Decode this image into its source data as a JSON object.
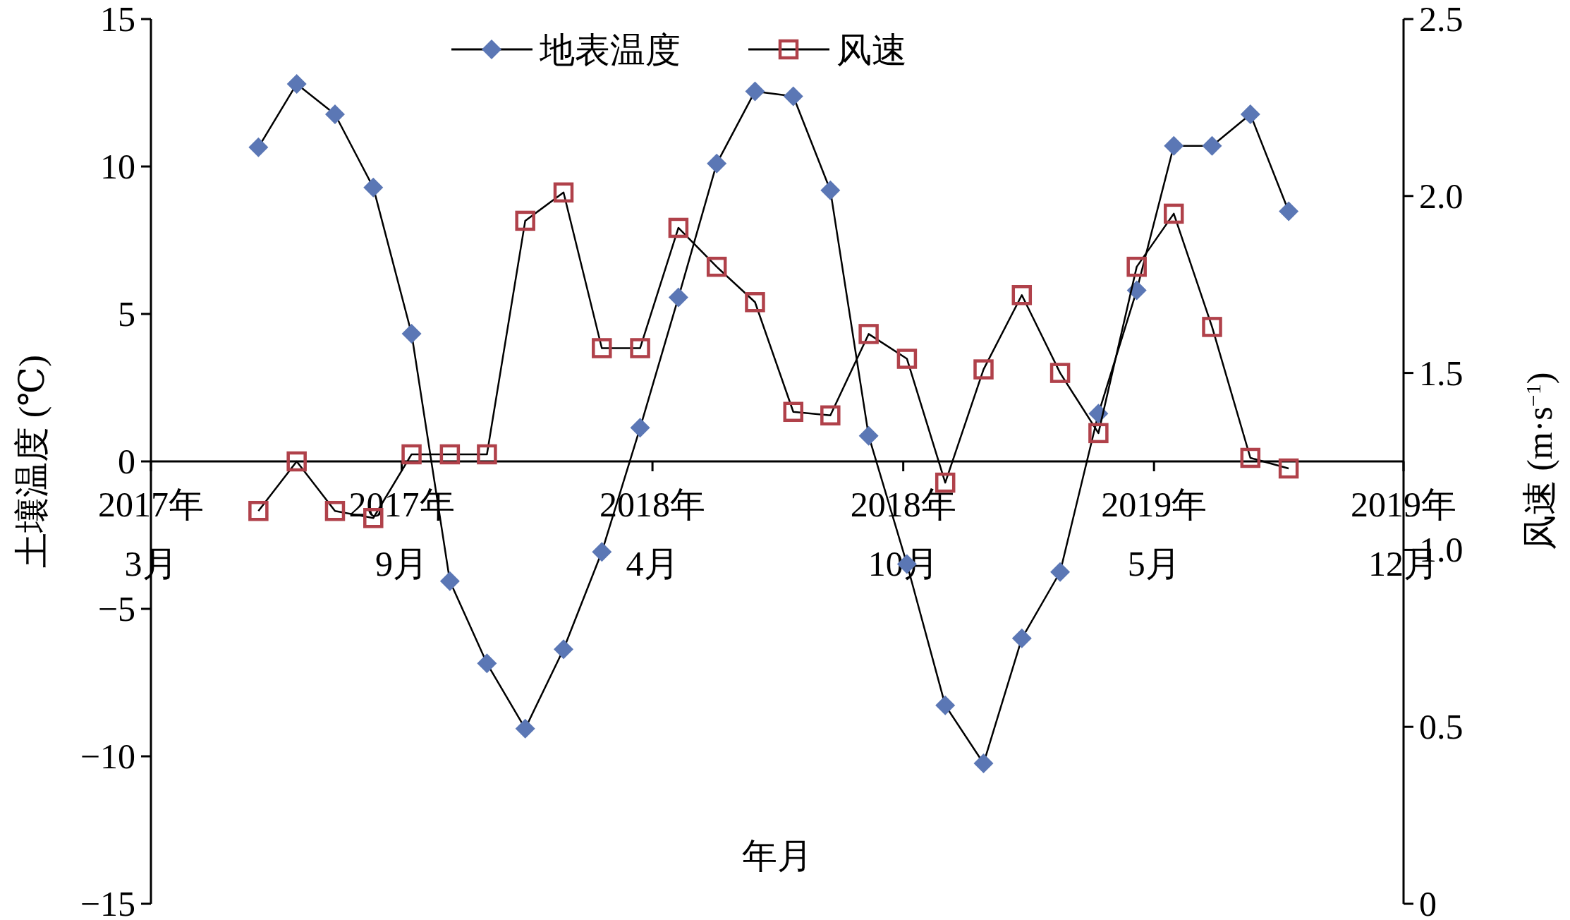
{
  "chart_data": {
    "type": "line",
    "xlabel": "年月",
    "ylabel": "土壤温度 (℃)",
    "y2label": "风速 (m·s$^{−1}$)",
    "legend": "top",
    "x": [
      "2017-05-27",
      "2017-06-27",
      "2017-07-28",
      "2017-08-28",
      "2017-09-28",
      "2017-10-29",
      "2017-11-28",
      "2017-12-29",
      "2018-01-29",
      "2018-03-01",
      "2018-04-01",
      "2018-05-02",
      "2018-06-02",
      "2018-07-03",
      "2018-08-03",
      "2018-09-02",
      "2018-10-03",
      "2018-11-03",
      "2018-12-04",
      "2019-01-04",
      "2019-02-04",
      "2019-03-07",
      "2019-04-07",
      "2019-05-08",
      "2019-06-07",
      "2019-07-08",
      "2019-08-08",
      "2019-09-08"
    ],
    "xlim": [
      "2017-03-01",
      "2019-12-10"
    ],
    "xticks": [
      {
        "value": "2017-03-01",
        "label": "2017年\n3月"
      },
      {
        "value": "2017-09-20",
        "label": "2017年\n9月"
      },
      {
        "value": "2018-04-11",
        "label": "2018年\n4月"
      },
      {
        "value": "2018-10-31",
        "label": "2018年\n10月"
      },
      {
        "value": "2019-05-22",
        "label": "2019年\n5月"
      },
      {
        "value": "2019-12-10",
        "label": "2019年\n12月"
      }
    ],
    "ylim": [
      -15,
      15
    ],
    "yticks": [
      {
        "value": -15,
        "label": "−15"
      },
      {
        "value": -10,
        "label": "−10"
      },
      {
        "value": -5,
        "label": "−5"
      },
      0,
      5,
      10,
      15
    ],
    "y2lim": [
      0,
      2.5
    ],
    "y2ticks": [
      0,
      0.5,
      {
        "value": 1,
        "label": "1.0"
      },
      1.5,
      {
        "value": 2,
        "label": "2.0"
      },
      2.5
    ],
    "series": [
      {
        "name": "地表温度",
        "color": "#5b77b5",
        "marker": "diamond",
        "values": [
          10.65,
          12.8,
          11.77,
          9.29,
          4.33,
          -4.06,
          -6.85,
          -9.06,
          -6.37,
          -3.07,
          1.14,
          5.56,
          10.1,
          12.55,
          12.38,
          9.19,
          0.87,
          -3.48,
          -8.27,
          -10.24,
          -6.0,
          -3.75,
          1.62,
          5.8,
          10.7,
          10.7,
          11.77,
          8.48
        ]
      },
      {
        "name": "风速",
        "color": "#b0414a",
        "marker": "square",
        "axis": "y2",
        "values": [
          1.11,
          1.25,
          1.11,
          1.09,
          1.27,
          1.27,
          1.27,
          1.93,
          2.01,
          1.57,
          1.57,
          1.91,
          1.8,
          1.7,
          1.39,
          1.38,
          1.61,
          1.54,
          1.19,
          1.51,
          1.72,
          1.5,
          1.33,
          1.8,
          1.95,
          1.63,
          1.26,
          1.23
        ]
      }
    ]
  }
}
